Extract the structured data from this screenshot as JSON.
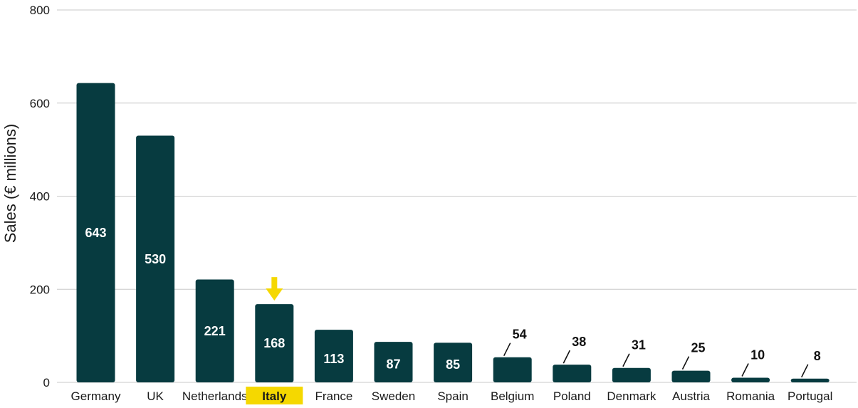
{
  "chart_data": {
    "type": "bar",
    "categories": [
      "Germany",
      "UK",
      "Netherlands",
      "Italy",
      "France",
      "Sweden",
      "Spain",
      "Belgium",
      "Poland",
      "Denmark",
      "Austria",
      "Romania",
      "Portugal"
    ],
    "values": [
      643,
      530,
      221,
      168,
      113,
      87,
      85,
      54,
      38,
      31,
      25,
      10,
      8
    ],
    "data_labels": [
      "643",
      "530",
      "221",
      "168",
      "113",
      "87",
      "85",
      "54",
      "38",
      "31",
      "25",
      "10",
      "8"
    ],
    "title": "",
    "xlabel": "",
    "ylabel": "Sales (€ millions)",
    "ylim": [
      0,
      800
    ],
    "yticks": [
      0,
      200,
      400,
      600,
      800
    ],
    "ytick_labels": [
      "0",
      "200",
      "400",
      "600",
      "800"
    ],
    "grid": true,
    "highlighted_category": "Italy",
    "colors": {
      "bar": "#073b40",
      "highlight": "#f5d800",
      "grid": "#c8c8c8"
    }
  }
}
